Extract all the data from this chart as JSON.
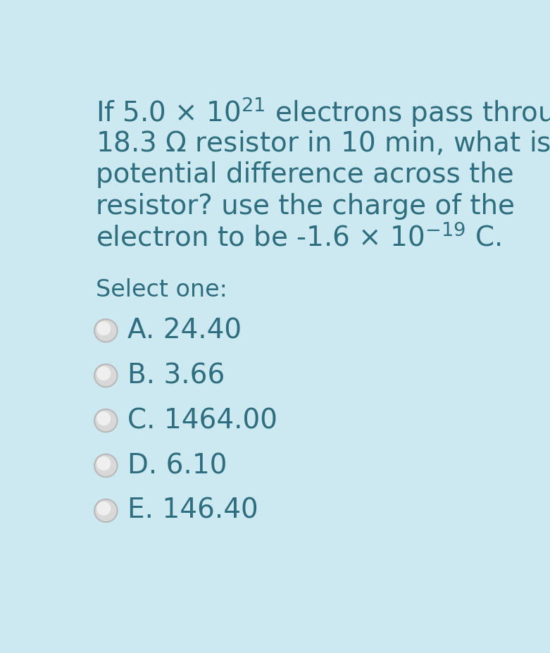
{
  "background_color": "#cce8f0",
  "text_color": "#2e6e7e",
  "select_one": "Select one:",
  "options": [
    {
      "label": "A.",
      "value": "24.40"
    },
    {
      "label": "B.",
      "value": "3.66"
    },
    {
      "label": "C.",
      "value": "1464.00"
    },
    {
      "label": "D.",
      "value": "6.10"
    },
    {
      "label": "E.",
      "value": "146.40"
    }
  ],
  "radio_color_face": "#e0e0e0",
  "radio_color_edge": "#c8c8c8",
  "font_size_question": 28,
  "font_size_options": 28,
  "font_size_select": 24,
  "fig_width": 7.81,
  "fig_height": 9.27,
  "dpi": 100
}
